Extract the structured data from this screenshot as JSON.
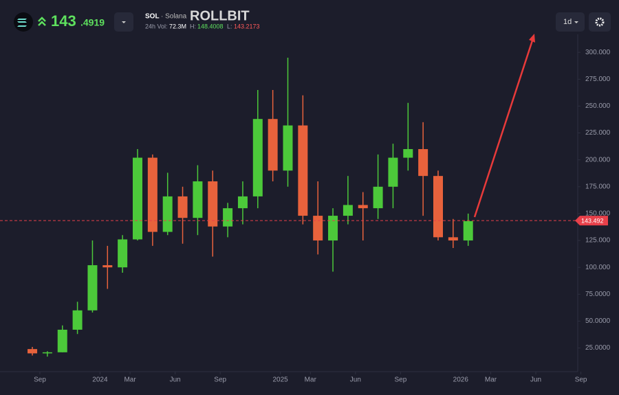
{
  "header": {
    "price_int": "143",
    "price_dec": ".4919",
    "symbol": "SOL",
    "name": "· Solana",
    "brand": "ROLLBIT",
    "vol_label": "24h Vol:",
    "vol": "72.3M",
    "high_label": "H:",
    "high": "148.4008",
    "low_label": "L:",
    "low": "143.2173",
    "interval": "1d"
  },
  "chart_data": {
    "type": "candlestick",
    "x": [
      "2023-08",
      "2023-09",
      "2023-10",
      "2023-11",
      "2023-12",
      "2024-01",
      "2024-02",
      "2024-03",
      "2024-04",
      "2024-05",
      "2024-06",
      "2024-07",
      "2024-08",
      "2024-09",
      "2024-10",
      "2024-11",
      "2024-12",
      "2025-01",
      "2025-02",
      "2025-03",
      "2025-04",
      "2025-05",
      "2025-06",
      "2025-07",
      "2025-08",
      "2025-09",
      "2025-10",
      "2025-11",
      "2025-12",
      "2026-01"
    ],
    "open": [
      24,
      20,
      21,
      42,
      60,
      102,
      100,
      126,
      202,
      133,
      166,
      146,
      180,
      138,
      155,
      166,
      238,
      190,
      232,
      148,
      125,
      148,
      158,
      155,
      175,
      202,
      210,
      185,
      128,
      125
    ],
    "high": [
      26,
      22,
      46,
      68,
      125,
      120,
      130,
      210,
      205,
      188,
      175,
      195,
      190,
      160,
      180,
      265,
      265,
      295,
      260,
      180,
      155,
      185,
      170,
      205,
      215,
      253,
      235,
      190,
      145,
      150
    ],
    "low": [
      18,
      17,
      21,
      38,
      58,
      80,
      95,
      125,
      120,
      130,
      122,
      130,
      110,
      128,
      140,
      155,
      180,
      175,
      140,
      112,
      96,
      140,
      125,
      145,
      155,
      190,
      148,
      125,
      118,
      120
    ],
    "close": [
      20,
      21,
      42,
      60,
      102,
      100,
      126,
      202,
      133,
      166,
      146,
      180,
      138,
      155,
      166,
      238,
      190,
      232,
      148,
      125,
      148,
      158,
      155,
      175,
      202,
      210,
      185,
      128,
      125,
      143
    ],
    "up_color": "#4cc93a",
    "down_color": "#e8623c",
    "ylim": [
      3,
      318
    ],
    "yticks": [
      {
        "value": 25,
        "label": "25.0000"
      },
      {
        "value": 50,
        "label": "50.0000"
      },
      {
        "value": 75,
        "label": "75.0000"
      },
      {
        "value": 100,
        "label": "100.000"
      },
      {
        "value": 125,
        "label": "125.000"
      },
      {
        "value": 150,
        "label": "150.000"
      },
      {
        "value": 175,
        "label": "175.000"
      },
      {
        "value": 200,
        "label": "200.000"
      },
      {
        "value": 225,
        "label": "225.000"
      },
      {
        "value": 250,
        "label": "250.000"
      },
      {
        "value": 275,
        "label": "275.000"
      },
      {
        "value": 300,
        "label": "300.000"
      }
    ],
    "xticks": [
      {
        "value": "2023-09",
        "label": "Sep"
      },
      {
        "value": "2024-01",
        "label": "2024"
      },
      {
        "value": "2024-03",
        "label": "Mar"
      },
      {
        "value": "2024-06",
        "label": "Jun"
      },
      {
        "value": "2024-09",
        "label": "Sep"
      },
      {
        "value": "2025-01",
        "label": "2025"
      },
      {
        "value": "2025-03",
        "label": "Mar"
      },
      {
        "value": "2025-06",
        "label": "Jun"
      },
      {
        "value": "2025-09",
        "label": "Sep"
      },
      {
        "value": "2026-01",
        "label": "2026"
      },
      {
        "value": "2026-03",
        "label": "Mar"
      },
      {
        "value": "2026-06",
        "label": "Jun"
      },
      {
        "value": "2026-09",
        "label": "Sep"
      }
    ],
    "last_price": 143.492,
    "last_price_color": "#e8404a"
  }
}
